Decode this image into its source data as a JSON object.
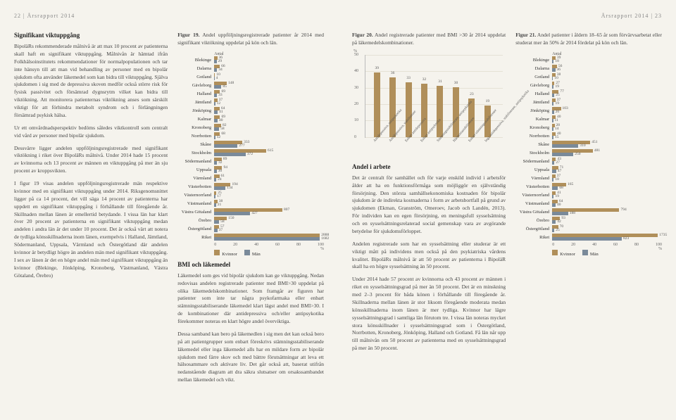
{
  "header": {
    "left": "22 | Årsrapport 2014",
    "right": "Årsrapport 2014 | 23"
  },
  "leftcol1": {
    "h": "Signifikant viktuppgång",
    "p1": "BipoläRs rekommenderade målnivå är att max 10 procent av patienterna skall haft en signifikant viktuppgång. Målnivån är hämtad ifrån Folkhälsoinstitutets rekommendationer för normalpopulationen och tar inte hänsyn till att man vid behandling av personer med en bipolär sjukdom ofta använder läkemedel som kan bidra till viktuppgång. Själva sjukdomen i sig med de depressiva skoven medför också större risk för fysisk passivitet och försämrad dygnsrytm vilket kan bidra till viktökning. Att monitorera patienternas viktökning anses som särskilt viktigt för att förhindra metabolt syndrom och i förlängningen försämrad psykisk hälsa.",
    "p2": "Ur ett omvårdnadsperspektiv bedöms således viktkontroll som centralt vid vård av personer med bipolär sjukdom.",
    "p3": "Dessvärre ligger andelen uppföljningsregistrerade med signifikant viktökning i riket över BipoläRs målnivå. Under 2014 hade 15 procent av kvinnorna och 13 procent av männen en viktuppgång på mer än sju procent av kroppsvikten.",
    "p4": "I figur 19 visas andelen uppföljningsregistrerade män respektive kvinnor med en signifikant viktuppgång under 2014. Riksgenomsnittet ligger på ca 14 procent, det vill säga 14 procent av patienterna har uppdett en signifikant viktuppgång i förhållande till föregående år. Skillnaden mellan länen är emellertid betydande. I vissa län har klart över 20 procent av patienterna en signifikant viktuppgång medan andelen i andra län är det under 10 procent. Det är också värt att notera de tydliga könsskillnaderna inom länen, exempelvis i Halland, Jämtland, Södermanland, Uppsala, Värmland och Östergötland där andelen kvinnor är betydligt högre än andelen män med signifikant viktuppgång. I sex av länen är det en högre andel män med signifikant viktuppgång än kvinnor (Blekinge, Jönköping, Kronoberg, Västmanland, Västra Götaland, Örebro)"
  },
  "fig19": {
    "caption_b": "Figur 19.",
    "caption": "Andel uppföljningsregistrerade patienter år 2014 med signifikant viktökning uppdelat på kön och län.",
    "ylabel": "Antal",
    "regions": [
      "Blekinge",
      "Dalarna",
      "Gotland",
      "Gävleborg",
      "Halland",
      "Jämtland",
      "Jönköping",
      "Kalmar",
      "Kronoberg",
      "Norrbotten",
      "Skåne",
      "Stockholm",
      "Södermanland",
      "Uppsala",
      "Värmland",
      "Västerbotten",
      "Västernorrland",
      "Västmanland",
      "Västra Götaland",
      "Örebro",
      "Östergötland",
      "Riket"
    ],
    "female": [
      36,
      66,
      10,
      148,
      69,
      37,
      64,
      69,
      82,
      68,
      333,
      615,
      89,
      94,
      61,
      194,
      25,
      38,
      807,
      150,
      57,
      2888
    ],
    "male": [
      29,
      34,
      4,
      85,
      33,
      12,
      41,
      40,
      58,
      12,
      277,
      372,
      32,
      30,
      24,
      134,
      17,
      21,
      427,
      58,
      37,
      1682
    ],
    "xmax": 100,
    "xticks": [
      0,
      20,
      40,
      60,
      80,
      100
    ],
    "legend": {
      "f": "Kvinnor",
      "m": "Män"
    }
  },
  "bmi": {
    "h": "BMI och läkemedel",
    "p1": "Läkemedel som ges vid bipolär sjukdom kan ge viktuppgång. Nedan redovisas andelen registrerade patienter med BMI>30 uppdelat på olika läkemedelskombinationer. Som framgår av figuren har patienter som inte tar några psykofarmaka eller enbart stämningsstabiliserande läkemedel klart lägst andel med BMI>30. I de kombinationer där antidepressiva och/eller antipsykotika förekommer noteras en klart högre andel överviktiga.",
    "p2": "Dessa samband kan bero på läkemedlen i sig men det kan också bero på att patientgrupper som enbart föreskrivs stämningsstabiliserande läkemedel eller inga läkemedel alls har en mildare form av bipolär sjukdom med färre skov och med bättre förutsättningar att leva ett hälsosammare och aktivare liv. Det går också att, baserat utifrån nedanstående diagram att dra säkra slutsatser om orsakssambandet mellan läkemedel och vikt."
  },
  "fig20": {
    "caption_b": "Figur 20.",
    "caption": "Andel registrerade patienter med BMI >30 år 2014 uppdelat på läkemedelskombinationer.",
    "yunit": "%",
    "ymax": 50,
    "yticks": [
      0,
      10,
      20,
      30,
      40,
      50
    ],
    "cats": [
      "Antidepressiva, antipsykotika",
      "Antidepressiva, stabiliserare",
      "Enbart antidepressiva",
      "Enbart antipsykotika",
      "Stämningsstabiliserare, antipsykotika",
      "Hårmoniastabiliserare",
      "Enbart stämningsstabiliserare",
      "Inga antidepressiva, stabiliserare, antipsykotika"
    ],
    "values": [
      39,
      36,
      33,
      32,
      31,
      30,
      23,
      19
    ]
  },
  "arbete": {
    "h": "Andel i arbete",
    "p1": "Det är centralt för samhället och för varje enskild individ i arbetsför ålder att ha en funktionsförmåga som möjliggör en självständig försörjning. Den största samhällsekonomiska kostnaden för bipolär sjukdom är de indirekta kostnaderna i form av arbetsbortfall på grund av sjukdomen (Ekman, Granström, Omeroev, Jacob och Landén, 2013). För individen kan en egen försörjning, en meningsfull sysselsättning och en sysselsättningsrelaterad social gemenskap vara av avgörande betydelse för sjukdomsförloppet.",
    "p2": "Andelen registrerade som har en sysselsättning eller studerar är ett viktigt mått på individens men också på den psykiatriska vårdens kvalitet. BipoläRs målnivå är att 50 procent av patienterna i BipoläR skall ha en högre sysselsättning än 50 procent.",
    "p3": "Under 2014 hade 57 procent av kvinnorna och 43 procent av männen i riket en sysselsättningsgrad på mer än 50 procent. Det är en minskning med 2–3 procent för båda könen i förhållande till föregående år. Skillnaderna mellan länen är stor liksom föregående moderata medan könsskillnaderna inom länen är mer tydliga. Kvinnor har lägre sysselsättningsgrad i samtliga län förutom tre. I vissa län noteras mycket stora könsskillnader i sysselsättningsgrad som i Östergötland, Norrbotten, Kronoberg, Jönköping, Halland och Gotland. Få län når upp till målnivån om 50 procent av patienterna med en sysselsättningsgrad på mer än 50 procent."
  },
  "fig21": {
    "caption_b": "Figur 21.",
    "caption": "Andel patienter i åldern 18–65 år som förvärvsarbetat eller studerat mer än 50% år 2014 fördelat på kön och län.",
    "ylabel": "Antal",
    "regions": [
      "Blekinge",
      "Dalarna",
      "Gotland",
      "Gävleborg",
      "Halland",
      "Jämtland",
      "Jönköping",
      "Kalmar",
      "Kronoberg",
      "Norrbotten",
      "Skåne",
      "Stockholm",
      "Södermanland",
      "Uppsala",
      "Värmland",
      "Västerbotten",
      "Västernorrland",
      "Västmanland",
      "Västra Götaland",
      "Örebro",
      "Östergötland",
      "Riket"
    ],
    "female": [
      39,
      56,
      38,
      27,
      77,
      37,
      103,
      40,
      28,
      40,
      451,
      481,
      43,
      71,
      37,
      165,
      41,
      64,
      794,
      93,
      70,
      1735
    ],
    "male": [
      18,
      36,
      10,
      19,
      25,
      19,
      20,
      11,
      14,
      15,
      310,
      250,
      27,
      47,
      18,
      68,
      19,
      40,
      188,
      42,
      25,
      823
    ],
    "xmax": 100,
    "xticks": [
      0,
      20,
      40,
      60,
      80,
      100
    ],
    "legend": {
      "f": "Kvinnor",
      "m": "Män"
    }
  },
  "colors": {
    "female": "#b08f5a",
    "male": "#7a8a9a"
  }
}
